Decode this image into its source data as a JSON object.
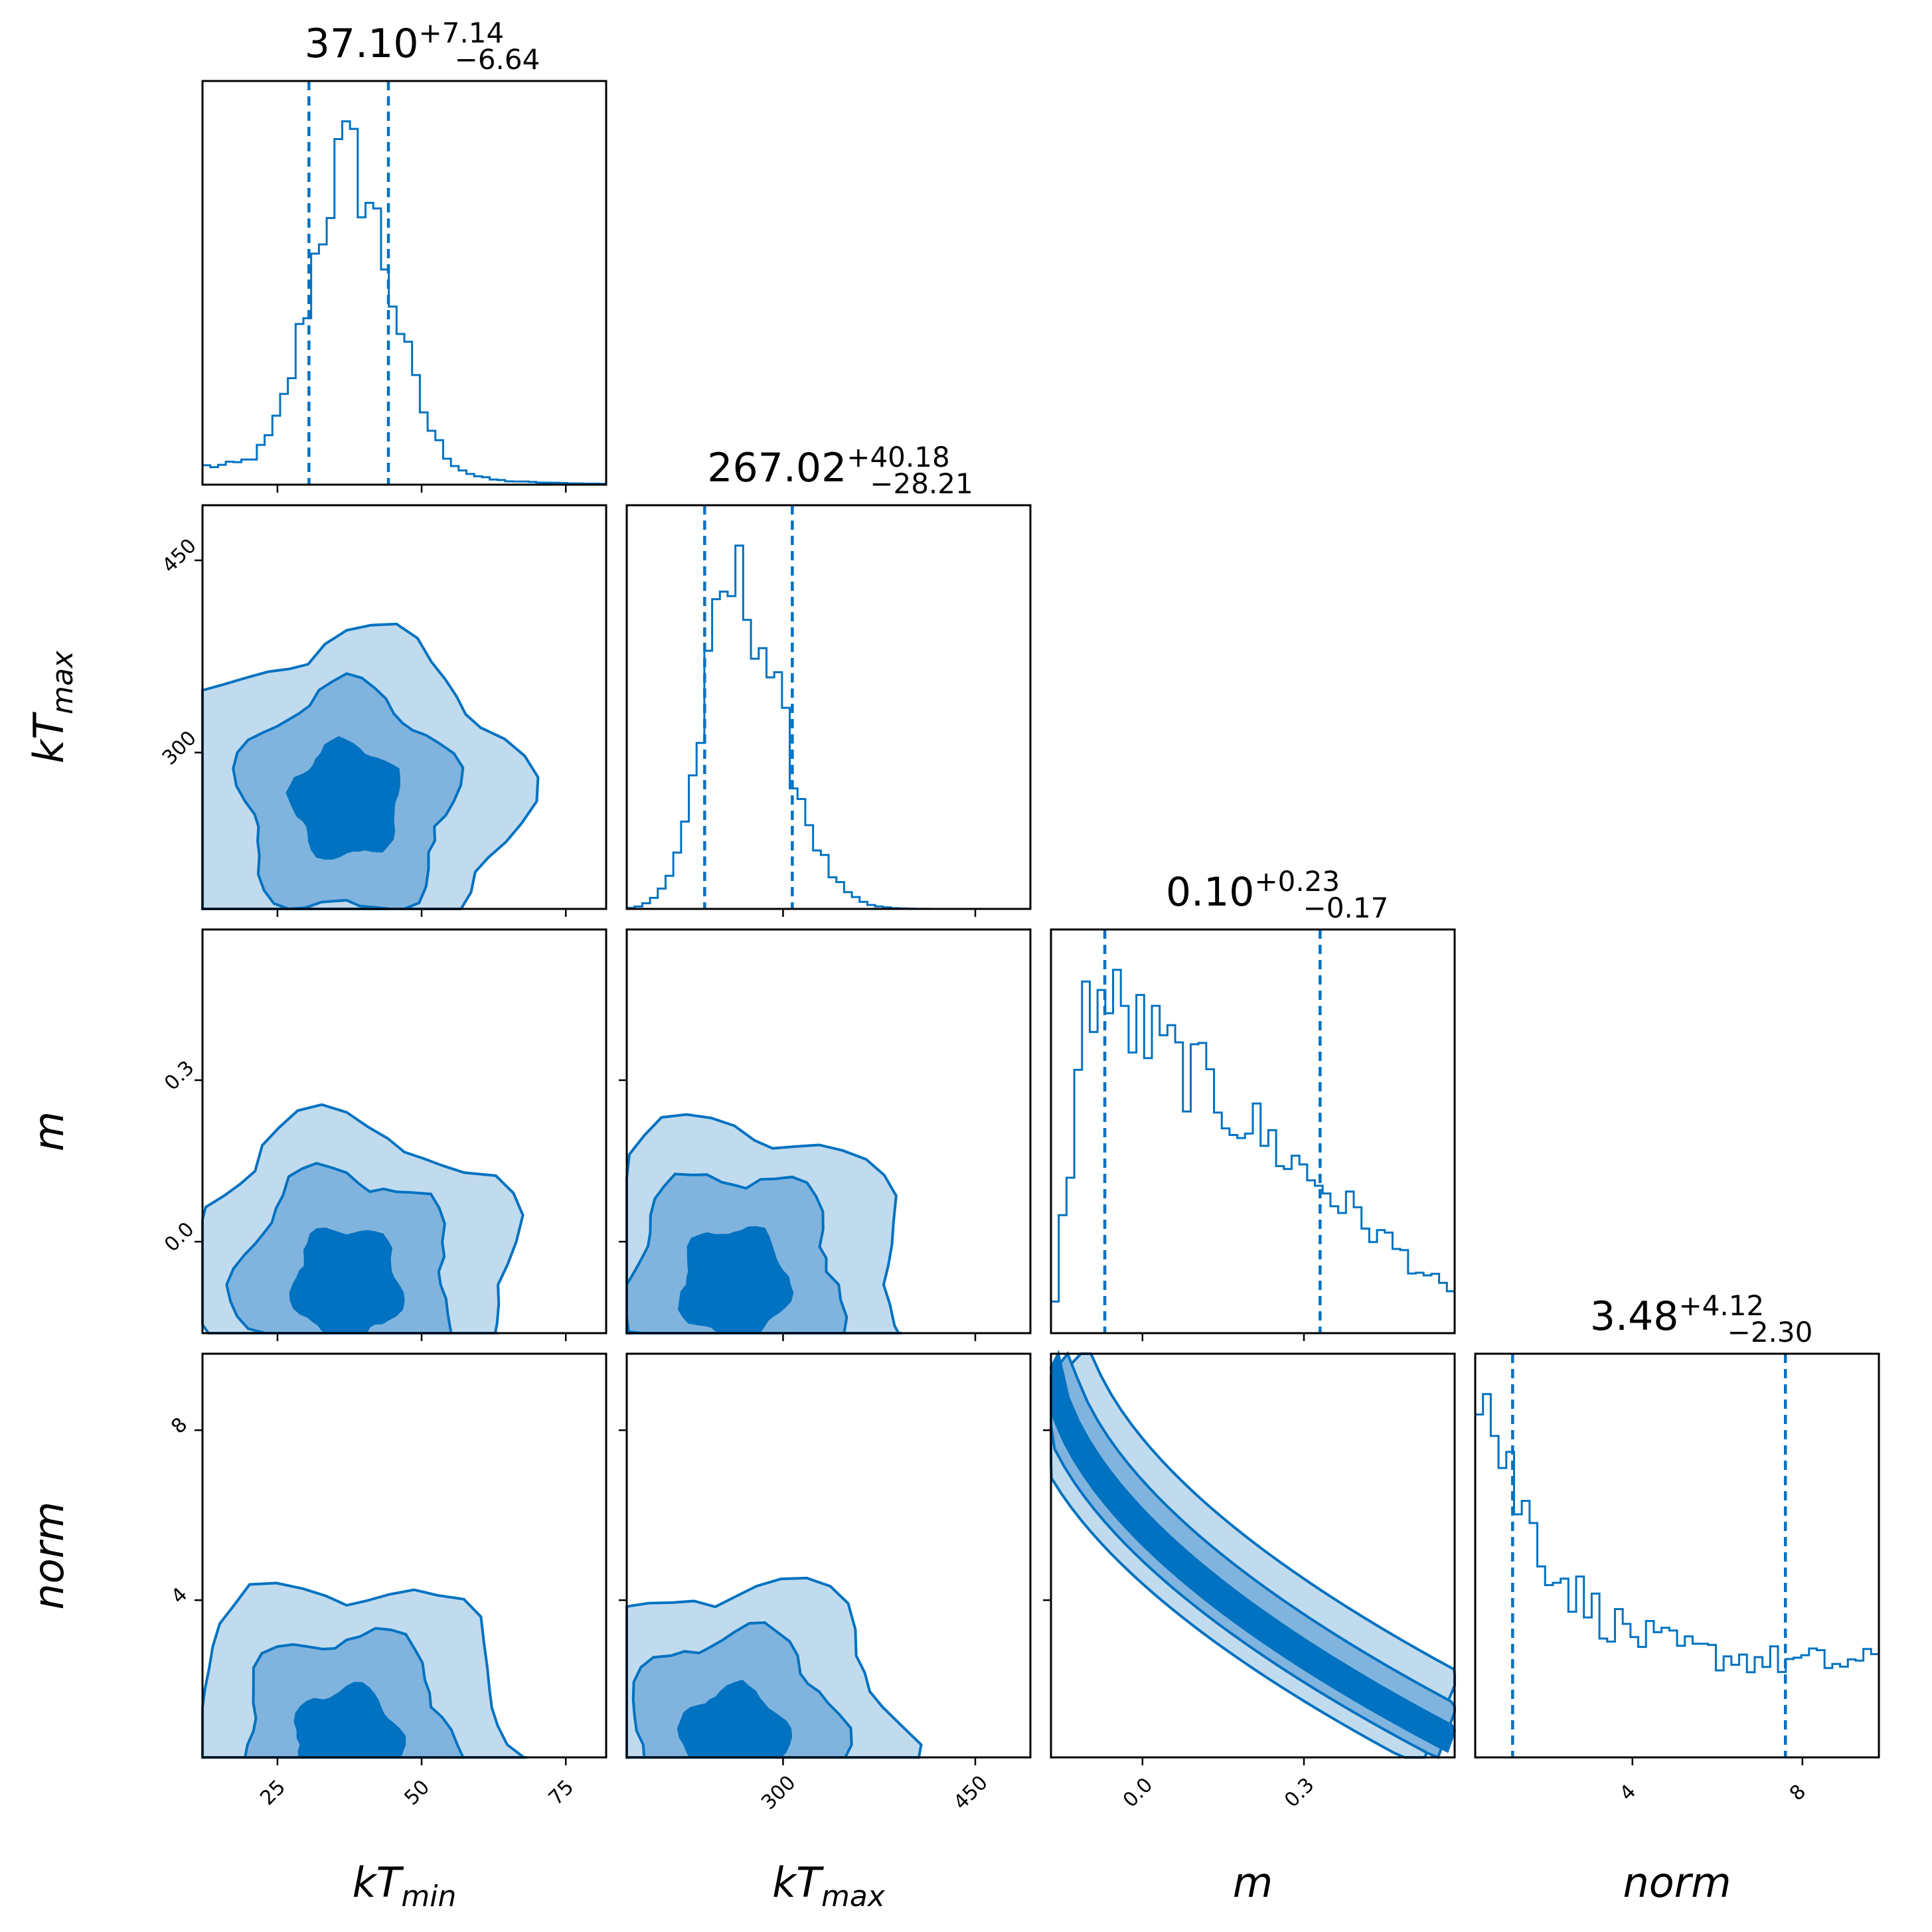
{
  "colors": {
    "accent": "#0072c1",
    "level1": "#c1dbee",
    "level2": "#80b4de",
    "level3": "#0072c1",
    "frame": "#000000"
  },
  "chart_data": {
    "type": "corner",
    "parameters": [
      {
        "key": "kTmin",
        "label": "kT",
        "sub": "min",
        "range": [
          12,
          82
        ],
        "ticks": [
          25,
          50,
          75
        ],
        "tick_labels": [
          "25",
          "50",
          "75"
        ],
        "title": {
          "median": "37.10",
          "plus": "+7.14",
          "minus": "−6.64"
        },
        "quantiles": [
          30.46,
          44.24
        ],
        "histogram_peak": 37
      },
      {
        "key": "kTmax",
        "label": "kT",
        "sub": "max",
        "range": [
          178,
          493
        ],
        "ticks": [
          300,
          450
        ],
        "tick_labels": [
          "300",
          "450"
        ],
        "title": {
          "median": "267.02",
          "plus": "+40.18",
          "minus": "−28.21"
        },
        "quantiles": [
          238.81,
          307.2
        ],
        "histogram_peak": 262
      },
      {
        "key": "m",
        "label": "m",
        "sub": "",
        "range": [
          -0.17,
          0.58
        ],
        "ticks": [
          0.0,
          0.3
        ],
        "tick_labels": [
          "0.0",
          "0.3"
        ],
        "title": {
          "median": "0.10",
          "plus": "+0.23",
          "minus": "−0.17"
        },
        "quantiles": [
          -0.07,
          0.33
        ],
        "histogram_peak": -0.08
      },
      {
        "key": "norm",
        "label": "norm",
        "sub": "",
        "range": [
          0.3,
          9.8
        ],
        "ticks": [
          4,
          8
        ],
        "tick_labels": [
          "4",
          "8"
        ],
        "title": {
          "median": "3.48",
          "plus": "+4.12",
          "minus": "−2.30"
        },
        "quantiles": [
          1.18,
          7.6
        ],
        "histogram_peak": 0.6
      }
    ],
    "contour_levels": 3,
    "grid": false,
    "legend": "none"
  }
}
